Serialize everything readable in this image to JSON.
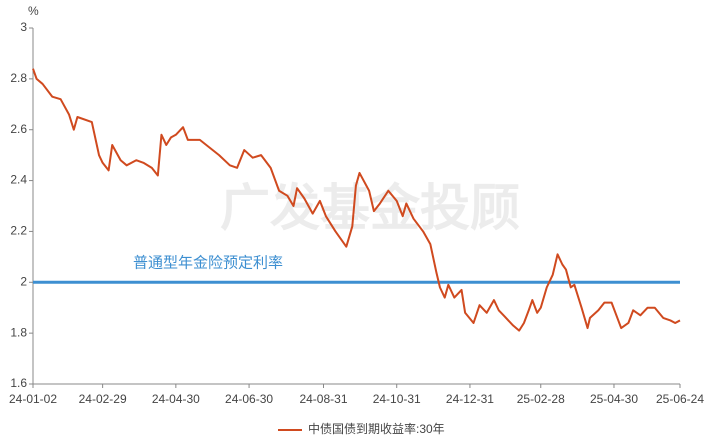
{
  "chart_data": {
    "type": "line",
    "y_label": "%",
    "watermark": "广发基金投顾",
    "reference_line": {
      "value": 2,
      "label": "普通型年金险预定利率",
      "color": "#3d8fd1"
    },
    "x": [
      "24-01-02",
      "24-01-05",
      "24-01-10",
      "24-01-18",
      "24-01-25",
      "24-02-01",
      "24-02-05",
      "24-02-08",
      "24-02-20",
      "24-02-26",
      "24-02-29",
      "24-03-05",
      "24-03-08",
      "24-03-15",
      "24-03-20",
      "24-03-28",
      "24-04-03",
      "24-04-10",
      "24-04-15",
      "24-04-18",
      "24-04-22",
      "24-04-26",
      "24-04-30",
      "24-05-06",
      "24-05-10",
      "24-05-20",
      "24-05-28",
      "24-06-05",
      "24-06-14",
      "24-06-20",
      "24-06-26",
      "24-07-03",
      "24-07-10",
      "24-07-18",
      "24-07-25",
      "24-08-01",
      "24-08-06",
      "24-08-09",
      "24-08-15",
      "24-08-22",
      "24-08-28",
      "24-09-02",
      "24-09-10",
      "24-09-19",
      "24-09-24",
      "24-09-27",
      "24-09-30",
      "24-10-08",
      "24-10-12",
      "24-10-17",
      "24-10-24",
      "24-10-31",
      "24-11-05",
      "24-11-08",
      "24-11-14",
      "24-11-22",
      "24-11-28",
      "24-12-03",
      "24-12-06",
      "24-12-10",
      "24-12-13",
      "24-12-18",
      "24-12-24",
      "24-12-27",
      "25-01-03",
      "25-01-08",
      "25-01-14",
      "25-01-20",
      "25-01-24",
      "25-01-28",
      "25-02-05",
      "25-02-10",
      "25-02-14",
      "25-02-18",
      "25-02-21",
      "25-02-25",
      "25-02-28",
      "25-03-05",
      "25-03-10",
      "25-03-14",
      "25-03-18",
      "25-03-21",
      "25-03-25",
      "25-03-28",
      "25-04-03",
      "25-04-08",
      "25-04-10",
      "25-04-17",
      "25-04-22",
      "25-04-28",
      "25-05-06",
      "25-05-12",
      "25-05-16",
      "25-05-22",
      "25-05-28",
      "25-06-03",
      "25-06-10",
      "25-06-16",
      "25-06-20",
      "25-06-24"
    ],
    "series": [
      {
        "name": "中债国债到期收益率:30年",
        "color": "#d04a1f",
        "values": [
          2.84,
          2.8,
          2.78,
          2.73,
          2.72,
          2.66,
          2.6,
          2.65,
          2.63,
          2.5,
          2.47,
          2.44,
          2.54,
          2.48,
          2.46,
          2.48,
          2.47,
          2.45,
          2.42,
          2.58,
          2.54,
          2.57,
          2.58,
          2.61,
          2.56,
          2.56,
          2.53,
          2.5,
          2.46,
          2.45,
          2.52,
          2.49,
          2.5,
          2.45,
          2.36,
          2.34,
          2.3,
          2.37,
          2.33,
          2.27,
          2.32,
          2.26,
          2.2,
          2.14,
          2.22,
          2.38,
          2.43,
          2.36,
          2.28,
          2.31,
          2.36,
          2.32,
          2.26,
          2.31,
          2.25,
          2.2,
          2.15,
          2.04,
          1.98,
          1.94,
          1.99,
          1.94,
          1.97,
          1.88,
          1.84,
          1.91,
          1.88,
          1.93,
          1.89,
          1.87,
          1.83,
          1.81,
          1.84,
          1.89,
          1.93,
          1.88,
          1.9,
          1.98,
          2.03,
          2.11,
          2.07,
          2.05,
          1.98,
          1.99,
          1.9,
          1.82,
          1.86,
          1.89,
          1.92,
          1.92,
          1.82,
          1.84,
          1.89,
          1.87,
          1.9,
          1.9,
          1.86,
          1.85,
          1.84,
          1.85
        ]
      }
    ],
    "xlim": [
      "24-01-02",
      "25-06-24"
    ],
    "xticks": [
      "24-01-02",
      "24-02-29",
      "24-04-30",
      "24-06-30",
      "24-08-31",
      "24-10-31",
      "24-12-31",
      "25-02-28",
      "25-04-30",
      "25-06-24"
    ],
    "ylim": [
      1.6,
      3
    ],
    "yticks": [
      1.6,
      1.8,
      2,
      2.2,
      2.4,
      2.6,
      2.8,
      3
    ],
    "grid": false
  }
}
